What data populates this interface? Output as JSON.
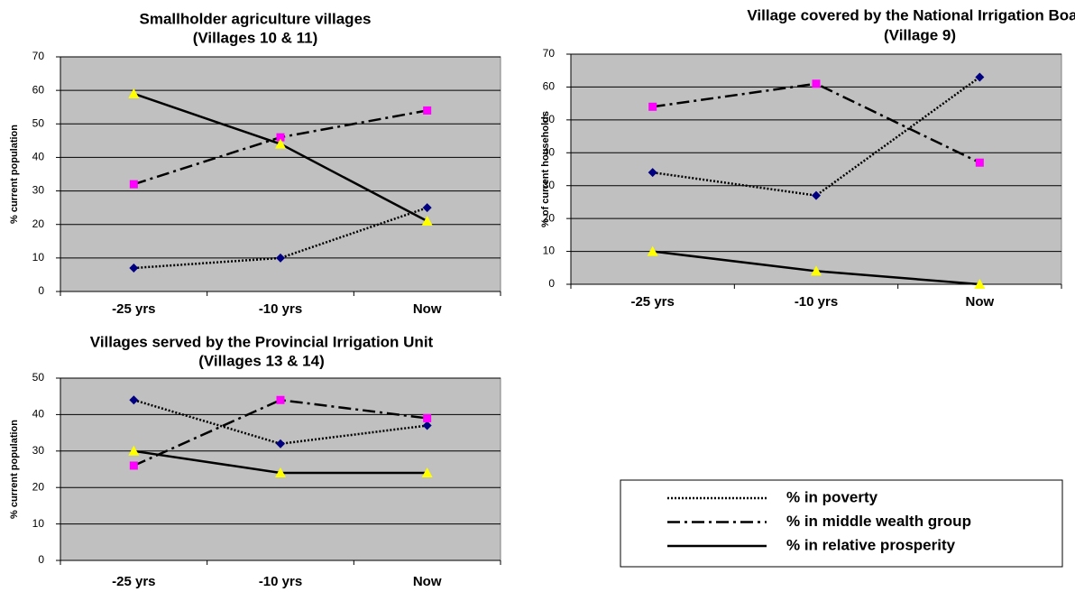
{
  "chart_data": [
    {
      "type": "line",
      "title": [
        "Smallholder agriculture villages",
        "(Villages 10 & 11)"
      ],
      "y_label": "% current population",
      "categories": [
        "-25 yrs",
        "-10 yrs",
        "Now"
      ],
      "ylim": [
        0,
        70
      ],
      "yticks": [
        0,
        10,
        20,
        30,
        40,
        50,
        60,
        70
      ],
      "grid": true,
      "series": [
        {
          "values": [
            7,
            10,
            25
          ]
        },
        {
          "values": [
            32,
            46,
            54
          ]
        },
        {
          "values": [
            59,
            44,
            21
          ]
        }
      ]
    },
    {
      "type": "line",
      "title": [
        "Village covered by the National Irrigation Board",
        "(Village 9)"
      ],
      "y_label": "% of current households",
      "categories": [
        "-25 yrs",
        "-10 yrs",
        "Now"
      ],
      "ylim": [
        0,
        70
      ],
      "yticks": [
        0,
        10,
        20,
        30,
        40,
        50,
        60,
        70
      ],
      "grid": true,
      "series": [
        {
          "values": [
            34,
            27,
            63
          ]
        },
        {
          "values": [
            54,
            61,
            37
          ]
        },
        {
          "values": [
            10,
            4,
            0
          ]
        }
      ]
    },
    {
      "type": "line",
      "title": [
        "Villages served by the Provincial Irrigation Unit",
        "(Villages 13 & 14)"
      ],
      "y_label": "% current population",
      "categories": [
        "-25 yrs",
        "-10 yrs",
        "Now"
      ],
      "ylim": [
        0,
        50
      ],
      "yticks": [
        0,
        10,
        20,
        30,
        40,
        50
      ],
      "grid": true,
      "series": [
        {
          "values": [
            44,
            32,
            37
          ]
        },
        {
          "values": [
            26,
            44,
            39
          ]
        },
        {
          "values": [
            30,
            24,
            24
          ]
        }
      ]
    }
  ],
  "legend": [
    {
      "name": "% in poverty",
      "line": "dotted",
      "marker": "diamond",
      "color": "#000080"
    },
    {
      "name": "% in middle wealth group",
      "line": "dash-dot",
      "marker": "square",
      "color": "#ff00ff"
    },
    {
      "name": "% in relative prosperity",
      "line": "solid",
      "marker": "triangle",
      "color": "#ffff00"
    }
  ]
}
